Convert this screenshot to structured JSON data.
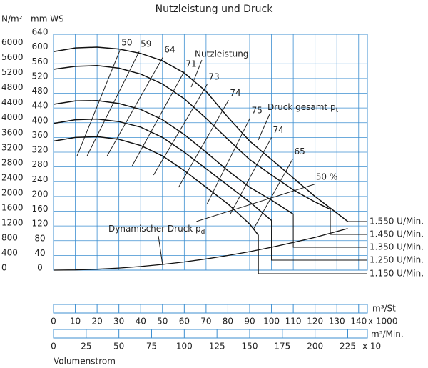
{
  "chart_data": {
    "type": "line",
    "title": "Nutzleistung und Druck",
    "y_label": "mm WS",
    "ylim": [
      0,
      640
    ],
    "yticks": [
      0,
      40,
      80,
      120,
      160,
      200,
      240,
      280,
      320,
      360,
      400,
      440,
      480,
      520,
      560,
      600,
      640
    ],
    "y2_label": "N/m²",
    "y2lim": [
      0,
      6278
    ],
    "y2ticks": [
      0,
      400,
      800,
      1200,
      1600,
      2000,
      2400,
      2800,
      3200,
      3600,
      4000,
      4400,
      4800,
      5200,
      5600,
      6000
    ],
    "x_label": "m³/St",
    "x_multiplier": "x 1000",
    "xlim": [
      0,
      144
    ],
    "xticks": [
      0,
      10,
      20,
      30,
      40,
      50,
      60,
      70,
      80,
      90,
      100,
      110,
      120,
      130,
      140
    ],
    "x2_label": "m³/Min.",
    "x2_multiplier": "x 10",
    "x2lim": [
      0,
      240
    ],
    "x2ticks": [
      0,
      25,
      50,
      75,
      100,
      125,
      150,
      175,
      200,
      225
    ],
    "x_title": "Volumenstrom",
    "grid": true,
    "grid_color": "#3d8fd1",
    "series": [
      {
        "name": "1.550 U/Min.",
        "color": "#111111",
        "x": [
          0,
          10,
          20,
          30,
          40,
          50,
          60,
          70,
          80,
          90,
          100,
          110,
          120,
          130,
          135
        ],
        "values": [
          593,
          603,
          605,
          600,
          588,
          568,
          535,
          485,
          415,
          350,
          300,
          250,
          200,
          155,
          132
        ]
      },
      {
        "name": "1.450 U/Min.",
        "color": "#111111",
        "x": [
          0,
          10,
          20,
          30,
          40,
          50,
          60,
          70,
          80,
          90,
          100,
          110,
          120,
          127
        ],
        "values": [
          545,
          553,
          555,
          548,
          532,
          505,
          465,
          412,
          355,
          300,
          258,
          218,
          185,
          165
        ]
      },
      {
        "name": "1.350 U/Min.",
        "color": "#111111",
        "x": [
          0,
          10,
          20,
          30,
          40,
          50,
          60,
          70,
          80,
          90,
          100,
          110
        ],
        "values": [
          450,
          459,
          460,
          452,
          436,
          408,
          368,
          320,
          270,
          225,
          190,
          152
        ]
      },
      {
        "name": "1.250 U/Min.",
        "color": "#111111",
        "x": [
          0,
          10,
          20,
          30,
          40,
          50,
          60,
          70,
          80,
          90,
          100
        ],
        "values": [
          398,
          408,
          410,
          403,
          388,
          360,
          320,
          275,
          230,
          185,
          135
        ]
      },
      {
        "name": "1.150 U/Min.",
        "color": "#111111",
        "x": [
          0,
          10,
          20,
          30,
          40,
          50,
          60,
          70,
          80,
          90,
          94
        ],
        "values": [
          350,
          360,
          362,
          355,
          338,
          310,
          270,
          225,
          180,
          125,
          95
        ]
      }
    ],
    "total_pressure_label": {
      "text": "Druck gesamt p",
      "sub": "t"
    },
    "power_label": "Nutzleistung",
    "dynamic_pressure": {
      "text": "Dynamischer Druck p",
      "sub": "d",
      "color": "#111111",
      "x": [
        0,
        10,
        20,
        30,
        40,
        50,
        60,
        70,
        80,
        90,
        100,
        110,
        120,
        130,
        135
      ],
      "values": [
        0,
        0.6,
        2.5,
        5.6,
        9.9,
        15.5,
        22.3,
        30.4,
        39.7,
        50.2,
        62,
        75,
        89,
        105,
        113
      ]
    },
    "efficiency": [
      {
        "label": "50",
        "x": [
          30.5,
          10.8
        ],
        "values": [
          597,
          310
        ]
      },
      {
        "label": "59",
        "x": [
          39.3,
          15.4
        ],
        "values": [
          593,
          310
        ]
      },
      {
        "label": "64",
        "x": [
          50.2,
          24.6
        ],
        "values": [
          578,
          310
        ]
      },
      {
        "label": "71",
        "x": [
          60,
          36.1
        ],
        "values": [
          539,
          283
        ]
      },
      {
        "label": "73",
        "x": [
          70.5,
          45.9
        ],
        "values": [
          504,
          258
        ]
      },
      {
        "label": "74",
        "x": [
          80.3,
          57.4
        ],
        "values": [
          461,
          225
        ]
      },
      {
        "label": "75",
        "x": [
          90.2,
          70.5
        ],
        "values": [
          413,
          180
        ]
      },
      {
        "label": "74",
        "x": [
          100,
          81
        ],
        "values": [
          360,
          151
        ]
      },
      {
        "label": "65",
        "x": [
          109.8,
          91.8
        ],
        "values": [
          302,
          112
        ]
      },
      {
        "label": "50 %",
        "x": [
          119.7,
          65.6
        ],
        "values": [
          233,
          132
        ]
      }
    ]
  }
}
